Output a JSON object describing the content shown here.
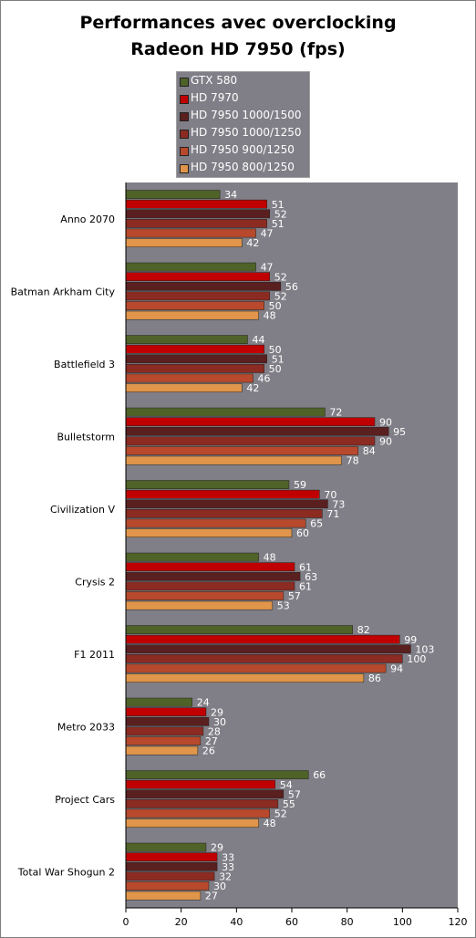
{
  "chart_data": {
    "type": "bar",
    "orientation": "horizontal",
    "title": "Performances avec overclocking",
    "subtitle": "Radeon HD 7950 (fps)",
    "categories": [
      "Anno 2070",
      "Batman Arkham City",
      "Battlefield 3",
      "Bulletstorm",
      "Civilization V",
      "Crysis 2",
      "F1 2011",
      "Metro 2033",
      "Project Cars",
      "Total War Shogun 2"
    ],
    "series": [
      {
        "name": "GTX 580",
        "color": "#4f6228",
        "values": [
          34,
          47,
          44,
          72,
          59,
          48,
          82,
          24,
          66,
          29
        ]
      },
      {
        "name": "HD 7970",
        "color": "#c00000",
        "values": [
          51,
          52,
          50,
          90,
          70,
          61,
          99,
          29,
          54,
          33
        ]
      },
      {
        "name": "HD 7950 1000/1500",
        "color": "#5a1f1f",
        "values": [
          52,
          56,
          51,
          95,
          73,
          63,
          103,
          30,
          57,
          33
        ]
      },
      {
        "name": "HD 7950 1000/1250",
        "color": "#8b2b22",
        "values": [
          51,
          52,
          50,
          90,
          71,
          61,
          100,
          28,
          55,
          32
        ]
      },
      {
        "name": "HD 7950 900/1250",
        "color": "#b8492c",
        "values": [
          47,
          50,
          46,
          84,
          65,
          57,
          94,
          27,
          52,
          30
        ]
      },
      {
        "name": "HD 7950 800/1250",
        "color": "#e0954a",
        "values": [
          42,
          48,
          42,
          78,
          60,
          53,
          86,
          26,
          48,
          27
        ]
      }
    ],
    "xlim": [
      0,
      120
    ],
    "xticks": [
      0,
      20,
      40,
      60,
      80,
      100,
      120
    ],
    "legend_position": "top-center",
    "plot_background": "#807f87",
    "grid": false
  }
}
